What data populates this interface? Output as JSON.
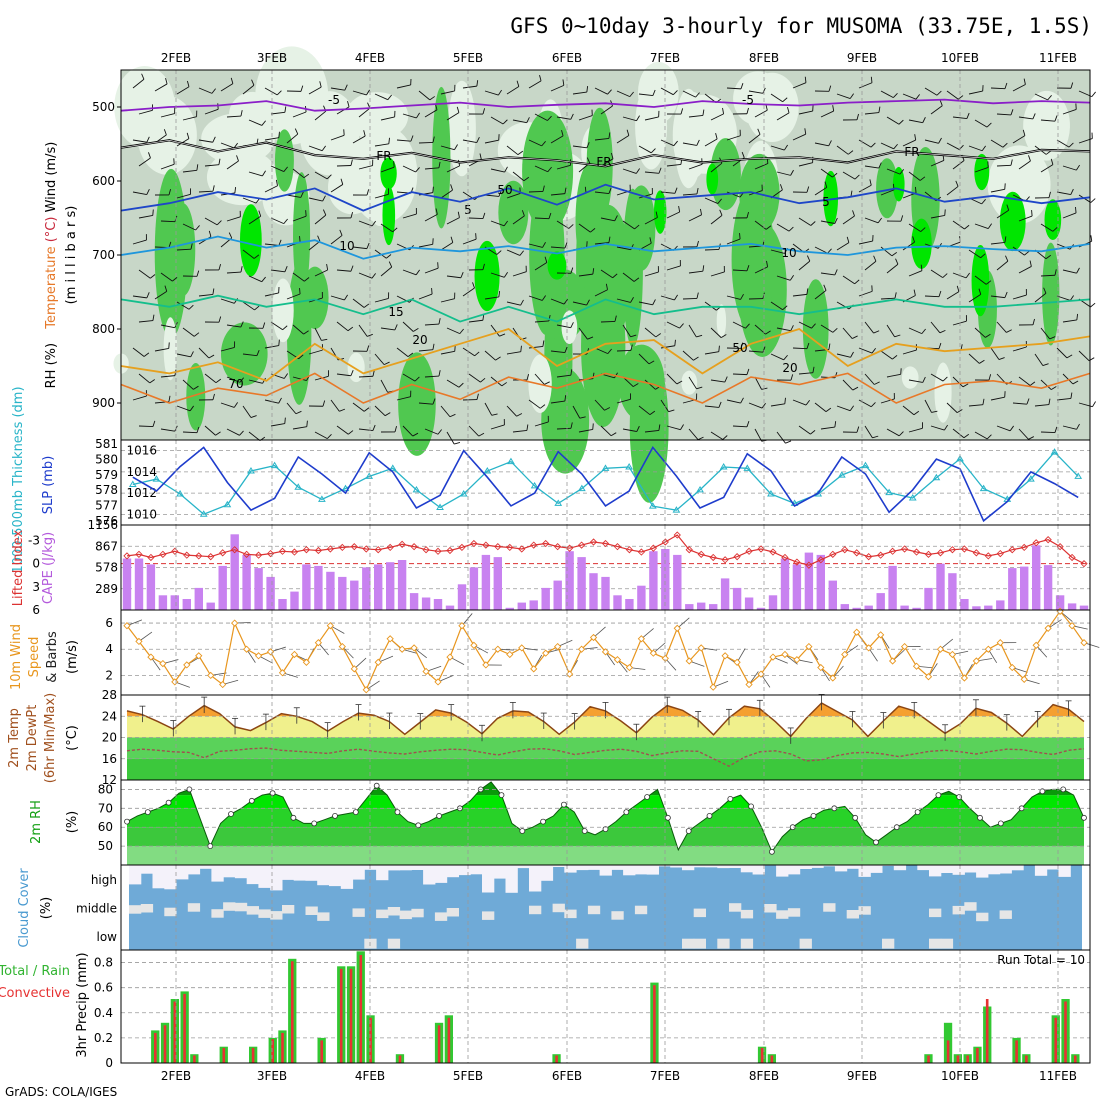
{
  "chart_data": {
    "title": "GFS 0~10day 3-hourly for MUSOMA (33.75E, 1.5S)",
    "footer": "GrADS: COLA/IGES",
    "dates": [
      "2FEB",
      "3FEB",
      "4FEB",
      "5FEB",
      "6FEB",
      "7FEB",
      "8FEB",
      "9FEB",
      "10FEB",
      "11FEB"
    ],
    "panels": {
      "upper": {
        "type": "heatmap",
        "ylabel_parts": {
          "rh": "RH (%)",
          "temp": "Temperature",
          "temp_unit": "(°C)",
          "wind": "Wind (m/s)",
          "pressure": "(m i l l i b a r s)"
        },
        "yticks": [
          500,
          600,
          700,
          800,
          900
        ],
        "ylim": [
          950,
          450
        ],
        "contour_labels": [
          "-5",
          "-5",
          "FR",
          "FR",
          "FR",
          "5",
          "5",
          "10",
          "10",
          "15",
          "20",
          "20",
          "50",
          "50",
          "70"
        ],
        "isotherms": [
          {
            "name": "-5",
            "color": "#8a1ec8",
            "p": [
              505,
              500,
              498,
              492,
              505,
              502,
              498,
              494,
              500,
              497,
              495,
              500,
              492,
              496,
              498,
              494,
              492,
              490,
              495,
              492,
              494
            ]
          },
          {
            "name": "FR",
            "color": "#000000",
            "p": [
              555,
              545,
              560,
              548,
              565,
              570,
              562,
              575,
              568,
              572,
              580,
              565,
              575,
              570,
              568,
              575,
              560,
              565,
              570,
              558,
              560
            ]
          },
          {
            "name": "5",
            "color": "#1e46c8",
            "p": [
              640,
              630,
              615,
              625,
              610,
              640,
              615,
              628,
              610,
              632,
              605,
              625,
              620,
              615,
              630,
              622,
              610,
              628,
              620,
              630,
              622
            ]
          },
          {
            "name": "10",
            "color": "#1e96dc",
            "p": [
              700,
              690,
              675,
              690,
              680,
              705,
              690,
              695,
              688,
              698,
              685,
              695,
              690,
              685,
              695,
              700,
              690,
              688,
              692,
              695,
              685
            ]
          },
          {
            "name": "15",
            "color": "#14be8c",
            "p": [
              760,
              770,
              755,
              770,
              760,
              780,
              760,
              790,
              770,
              790,
              760,
              780,
              770,
              770,
              780,
              770,
              760,
              770,
              770,
              765,
              760
            ]
          },
          {
            "name": "20",
            "color": "#e6a01e",
            "p": [
              850,
              860,
              845,
              870,
              820,
              860,
              840,
              820,
              800,
              850,
              820,
              815,
              860,
              820,
              800,
              850,
              820,
              830,
              825,
              820,
              810
            ]
          }
        ]
      },
      "slp": {
        "type": "line",
        "ylabel_left": "1000-500mb Thickness (dm)",
        "ylabel_right": "SLP (mb)",
        "left_ticks": [
          576,
          577,
          578,
          579,
          580,
          581
        ],
        "right_ticks": [
          1010,
          1012,
          1014,
          1016
        ],
        "ylim": [
          1009,
          1017
        ],
        "series": [
          {
            "name": "SLP (mb)",
            "color": "#1e3ccc",
            "values": [
              1013.5,
              1012.2,
              1014.5,
              1016.3,
              1013.0,
              1010.4,
              1011.5,
              1015.4,
              1013.8,
              1012.0,
              1015.8,
              1014.0,
              1010.6,
              1011.8,
              1016.0,
              1013.5,
              1010.8,
              1012.0,
              1015.9,
              1013.8,
              1010.8,
              1012.2,
              1016.3,
              1013.6,
              1010.6,
              1011.6,
              1015.7,
              1014.1,
              1010.8,
              1012.0,
              1015.4,
              1013.8,
              1010.2,
              1012.3,
              1015.2,
              1014.3,
              1009.4,
              1011.2,
              1014.0,
              1012.9,
              1011.6
            ]
          },
          {
            "name": "Thickness (dm)",
            "color": "#28b4c8",
            "values": [
              578.2,
              578.6,
              577.5,
              576.0,
              576.7,
              579.2,
              579.6,
              578.0,
              577.1,
              577.9,
              578.8,
              579.4,
              577.8,
              576.5,
              577.5,
              579.2,
              579.9,
              578.1,
              576.8,
              577.9,
              579.4,
              579.5,
              576.6,
              576.3,
              577.8,
              579.5,
              579.4,
              577.5,
              576.8,
              577.5,
              578.9,
              579.6,
              577.6,
              577.2,
              578.7,
              580.1,
              577.9,
              577.1,
              578.6,
              580.6,
              578.8
            ]
          }
        ]
      },
      "cape": {
        "type": "bar",
        "ylabel_left": "Lifted Index",
        "ylabel_right": "CAPE (J/kg)",
        "li_ticks": [
          "-3",
          "0",
          "3",
          "6"
        ],
        "cape_ticks": [
          "1156",
          "867",
          "578",
          "289"
        ],
        "ylim": [
          0,
          1156
        ],
        "cape": [
          700,
          700,
          620,
          200,
          200,
          150,
          300,
          100,
          600,
          1030,
          750,
          570,
          450,
          150,
          250,
          620,
          600,
          520,
          450,
          400,
          580,
          620,
          650,
          680,
          230,
          170,
          150,
          60,
          350,
          580,
          750,
          720,
          30,
          100,
          130,
          300,
          400,
          800,
          720,
          500,
          450,
          200,
          150,
          330,
          800,
          830,
          750,
          80,
          100,
          80,
          430,
          300,
          170,
          30,
          200,
          700,
          620,
          780,
          750,
          400,
          80,
          30,
          60,
          230,
          600,
          60,
          30,
          300,
          630,
          500,
          150,
          50,
          60,
          130,
          570,
          590,
          880,
          610,
          200,
          90,
          60
        ],
        "li": [
          -1.0,
          -1.2,
          -0.8,
          -1.2,
          -1.6,
          -1.1,
          -1.0,
          -0.9,
          -1.4,
          -1.8,
          -1.2,
          -1.1,
          -1.3,
          -1.6,
          -1.5,
          -1.8,
          -1.7,
          -1.9,
          -2.1,
          -2.2,
          -1.9,
          -1.8,
          -2.1,
          -2.5,
          -2.2,
          -1.8,
          -1.6,
          -1.7,
          -2.1,
          -2.6,
          -2.4,
          -2.2,
          -2.1,
          -1.9,
          -2.4,
          -2.6,
          -2.2,
          -2.0,
          -2.4,
          -2.8,
          -2.6,
          -2.2,
          -1.8,
          -1.5,
          -2.0,
          -2.8,
          -3.7,
          -1.8,
          -1.2,
          -0.8,
          -0.5,
          -0.9,
          -1.6,
          -1.9,
          -1.5,
          -0.8,
          -0.2,
          0.2,
          -0.5,
          -1.2,
          -1.8,
          -1.4,
          -0.9,
          -1.1,
          -1.6,
          -1.9,
          -1.5,
          -1.2,
          -1.4,
          -1.8,
          -1.9,
          -1.4,
          -1.0,
          -1.3,
          -1.8,
          -2.1,
          -2.7,
          -3.1,
          -2.2,
          -0.8,
          0.0
        ]
      },
      "wind": {
        "type": "line",
        "ylabel": "10m Wind Speed & Barbs (m/s)",
        "ylabel_parts": {
          "a": "10m Wind",
          "b": "Speed",
          "c": "& Barbs",
          "d": "(m/s)"
        },
        "yticks": [
          2,
          4,
          6
        ],
        "ylim": [
          0.5,
          7
        ],
        "color": "#e8961e",
        "values": [
          5.8,
          4.6,
          3.4,
          2.9,
          1.5,
          2.8,
          3.5,
          2.0,
          1.3,
          6.0,
          4.0,
          3.5,
          3.8,
          2.2,
          3.6,
          3.0,
          4.5,
          5.8,
          4.2,
          2.5,
          0.9,
          3.0,
          4.8,
          4.0,
          4.1,
          2.3,
          1.5,
          3.4,
          5.8,
          4.3,
          2.8,
          4.0,
          3.6,
          4.1,
          2.5,
          3.7,
          4.2,
          2.1,
          4.0,
          4.9,
          3.8,
          3.2,
          2.6,
          4.8,
          3.7,
          3.3,
          5.6,
          3.1,
          4.1,
          1.1,
          3.5,
          3.0,
          1.3,
          2.1,
          3.4,
          3.6,
          3.2,
          4.2,
          2.6,
          1.8,
          3.6,
          5.3,
          4.1,
          5.1,
          3.1,
          4.2,
          2.7,
          1.9,
          4.0,
          3.6,
          1.8,
          3.1,
          4.0,
          4.5,
          2.6,
          1.7,
          4.3,
          5.6,
          6.9,
          5.8,
          4.5
        ]
      },
      "temp": {
        "type": "area",
        "ylabel_parts": {
          "a": "2m Temp",
          "b": "2m DewPt",
          "c": "(6hr Min/Max)",
          "d": "(°C)"
        },
        "yticks": [
          12,
          16,
          20,
          24,
          28
        ],
        "ylim": [
          12,
          28
        ],
        "temp": [
          25.0,
          24.3,
          23.0,
          21.6,
          24.0,
          26.0,
          24.5,
          22.0,
          21.3,
          22.8,
          24.5,
          24.0,
          23.0,
          21.2,
          23.0,
          24.6,
          24.2,
          23.0,
          20.6,
          22.9,
          25.2,
          24.6,
          22.9,
          20.7,
          23.6,
          25.0,
          24.8,
          23.0,
          20.6,
          22.9,
          25.8,
          25.0,
          23.1,
          20.9,
          23.8,
          26.0,
          25.1,
          23.3,
          20.5,
          23.7,
          25.9,
          25.4,
          23.0,
          20.2,
          23.6,
          26.5,
          24.9,
          23.3,
          20.2,
          23.1,
          25.9,
          25.0,
          22.9,
          20.8,
          22.6,
          25.5,
          24.7,
          22.7,
          20.2,
          23.3,
          26.2,
          25.3,
          23.0
        ],
        "dewpt": [
          17.5,
          17.8,
          17.6,
          17.3,
          17.2,
          16.2,
          17.4,
          17.6,
          17.9,
          18.0,
          17.6,
          17.4,
          17.2,
          17.0,
          17.5,
          17.8,
          17.4,
          17.1,
          16.9,
          17.3,
          17.6,
          17.8,
          17.7,
          17.2,
          16.7,
          17.3,
          17.8,
          17.9,
          17.5,
          16.8,
          17.2,
          17.6,
          17.8,
          17.4,
          16.6,
          17.1,
          17.5,
          17.4,
          16.0,
          14.6,
          16.3,
          17.3,
          17.5,
          16.9,
          15.6,
          15.8,
          16.6,
          17.1,
          17.2,
          16.9,
          16.4,
          16.9,
          17.4,
          17.6,
          17.3,
          16.9,
          17.4,
          17.8,
          17.7,
          17.2,
          16.8,
          17.6,
          17.9
        ]
      },
      "rh": {
        "type": "area",
        "ylabel": "2m RH",
        "unit": "(%)",
        "yticks": [
          50,
          60,
          70,
          80
        ],
        "ylim": [
          40,
          85
        ],
        "values": [
          63,
          66,
          68,
          70,
          73,
          78,
          80,
          65,
          50,
          62,
          67,
          70,
          74,
          77,
          78,
          76,
          65,
          62,
          62,
          64,
          66,
          67,
          68,
          75,
          82,
          77,
          68,
          63,
          61,
          63,
          66,
          68,
          70,
          74,
          80,
          84,
          77,
          62,
          58,
          60,
          63,
          66,
          72,
          68,
          58,
          56,
          59,
          63,
          68,
          72,
          76,
          80,
          65,
          48,
          58,
          62,
          66,
          70,
          75,
          77,
          71,
          60,
          47,
          55,
          60,
          64,
          66,
          69,
          70,
          71,
          65,
          56,
          52,
          56,
          60,
          63,
          68,
          72,
          77,
          79,
          76,
          70,
          65,
          60,
          62,
          64,
          70,
          76,
          79,
          80,
          80,
          77,
          65
        ]
      },
      "cloud": {
        "type": "heatmap",
        "ylabel": "Cloud Cover",
        "unit": "(%)",
        "rows": [
          "high",
          "middle",
          "low"
        ]
      },
      "precip": {
        "type": "bar",
        "legend_total": "Total / Rain",
        "legend_conv": "Convective",
        "ylabel": "3hr Precip (mm)",
        "run_total": "Run Total = 10",
        "yticks": [
          "0",
          "0.2",
          "0.4",
          "0.6",
          "0.8"
        ],
        "ylim": [
          0,
          0.9
        ],
        "total": [
          0,
          0,
          0,
          0.26,
          0.32,
          0.51,
          0.57,
          0.07,
          0,
          0,
          0.13,
          0,
          0,
          0.13,
          0,
          0.2,
          0.26,
          0.83,
          0,
          0,
          0.2,
          0,
          0.77,
          0.77,
          0.89,
          0.38,
          0,
          0,
          0.07,
          0,
          0,
          0,
          0.32,
          0.38,
          0,
          0,
          0,
          0,
          0,
          0,
          0,
          0,
          0,
          0,
          0.07,
          0,
          0,
          0,
          0,
          0,
          0,
          0,
          0,
          0,
          0.64,
          0,
          0,
          0,
          0,
          0,
          0,
          0,
          0,
          0,
          0,
          0.13,
          0.07,
          0,
          0,
          0,
          0,
          0,
          0,
          0,
          0,
          0,
          0,
          0,
          0,
          0,
          0,
          0,
          0.07,
          0,
          0.32,
          0.07,
          0.07,
          0.13,
          0.45,
          0,
          0,
          0.2,
          0.07,
          0,
          0,
          0.38,
          0.51,
          0.07,
          0
        ],
        "conv": [
          0,
          0,
          0,
          0.24,
          0.3,
          0.49,
          0.55,
          0.06,
          0,
          0,
          0.12,
          0,
          0,
          0.12,
          0,
          0.19,
          0.24,
          0.81,
          0,
          0,
          0.18,
          0,
          0.75,
          0.75,
          0.86,
          0.36,
          0,
          0,
          0.06,
          0,
          0,
          0,
          0.3,
          0.36,
          0,
          0,
          0,
          0,
          0,
          0,
          0,
          0,
          0,
          0,
          0.06,
          0,
          0,
          0,
          0,
          0,
          0,
          0,
          0,
          0,
          0.62,
          0,
          0,
          0,
          0,
          0,
          0,
          0,
          0,
          0,
          0,
          0.12,
          0.06,
          0,
          0,
          0,
          0,
          0,
          0,
          0,
          0,
          0,
          0,
          0,
          0,
          0,
          0,
          0,
          0.06,
          0,
          0.18,
          0.06,
          0.06,
          0.12,
          0.51,
          0,
          0,
          0.18,
          0.06,
          0,
          0,
          0.36,
          0.49,
          0.06,
          0
        ]
      }
    },
    "colors": {
      "rh_light": "#e6f2e6",
      "rh_mid": "#c8d7c8",
      "rh_green": "#50c850",
      "rh_bright": "#00e600",
      "cloud_blue": "#6faad7",
      "cloud_grey": "#e6e6e6",
      "cape_purple": "#c882f0",
      "li_red": "#dc3232",
      "wind_orange": "#e8961e",
      "temp_orange": "#f5a030",
      "temp_yellow": "#f0f08c",
      "dewpt_green": "#3cc83c",
      "rh_green_top": "#0a9a0a",
      "precip_green": "#32c832",
      "precip_red": "#e63232"
    }
  }
}
